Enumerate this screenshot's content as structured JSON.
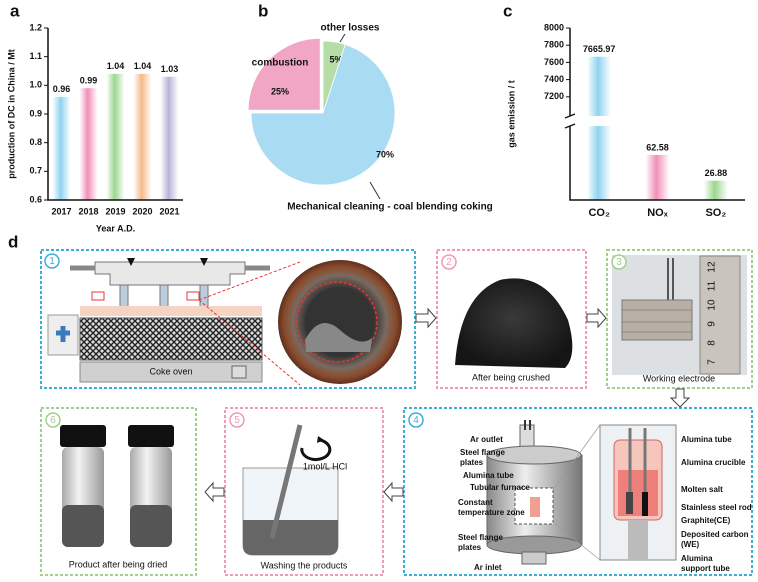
{
  "chart_data": [
    {
      "type": "bar",
      "panel_label": "a",
      "ylabel": "production of DC in China / Mt",
      "xlabel": "Year A.D.",
      "categories": [
        "2017",
        "2018",
        "2019",
        "2020",
        "2021"
      ],
      "values": [
        0.96,
        0.99,
        1.04,
        1.04,
        1.03
      ],
      "colors": [
        "#8fd3f0",
        "#f08fb8",
        "#9cd68f",
        "#f5b98a",
        "#b8b4d9"
      ],
      "ylim": [
        0.6,
        1.2
      ],
      "yticks": [
        0.6,
        0.7,
        0.8,
        0.9,
        {
          "value": 1,
          "label": "1.0"
        },
        1.1,
        1.2
      ]
    },
    {
      "type": "pie",
      "panel_label": "b",
      "categories": [
        "other losses",
        "Mechanical cleaning - coal blending coking",
        "combustion"
      ],
      "values": [
        5,
        70,
        25
      ],
      "value_labels": [
        "5%",
        "70%",
        "25%"
      ],
      "colors": [
        "#b6dca8",
        "#a9dcf2",
        "#f0a6c4"
      ]
    },
    {
      "type": "broken-bar",
      "panel_label": "c",
      "ylabel": "gas emission / t",
      "categories": [
        "CO₂",
        "NOₓ",
        "SO₂"
      ],
      "values": [
        7665.97,
        62.58,
        26.88
      ],
      "colors": [
        "#8fd3f0",
        "#f08fb8",
        "#9cd68f"
      ],
      "ylim": [
        0,
        8000
      ],
      "ybreak": [
        100,
        7000
      ],
      "yticks": [
        7200,
        7400,
        7600,
        7800,
        8000
      ]
    }
  ],
  "diagram": {
    "panel_label": "d",
    "step_numbers": [
      "1",
      "2",
      "3",
      "4",
      "5",
      "6"
    ],
    "captions": {
      "coke_oven": "Coke oven",
      "crushed": "After being crushed",
      "electrode": "Working electrode",
      "washing": "Washing the products",
      "reagent": "1mol/L HCl",
      "product": "Product after being dried"
    },
    "ruler_labels": [
      7,
      8,
      9,
      10,
      11,
      12
    ],
    "furnace_labels": [
      [
        "Ar outlet"
      ],
      [
        "Steel flange",
        "plates"
      ],
      [
        "Alumina tube"
      ],
      [
        "Tubular furnace"
      ],
      [
        "Constant",
        "temperature zone"
      ],
      [
        "Steel flange",
        "plates"
      ],
      [
        "Ar inlet"
      ]
    ],
    "crucible_labels": [
      [
        "Alumina tube"
      ],
      [
        "Alumina crucible"
      ],
      [
        "Molten salt"
      ],
      [
        "Stainless steel rod"
      ],
      [
        "Graphite(CE)"
      ],
      [
        "Deposited carbon",
        "(WE)"
      ],
      [
        "Alumina",
        "support tube"
      ]
    ]
  }
}
